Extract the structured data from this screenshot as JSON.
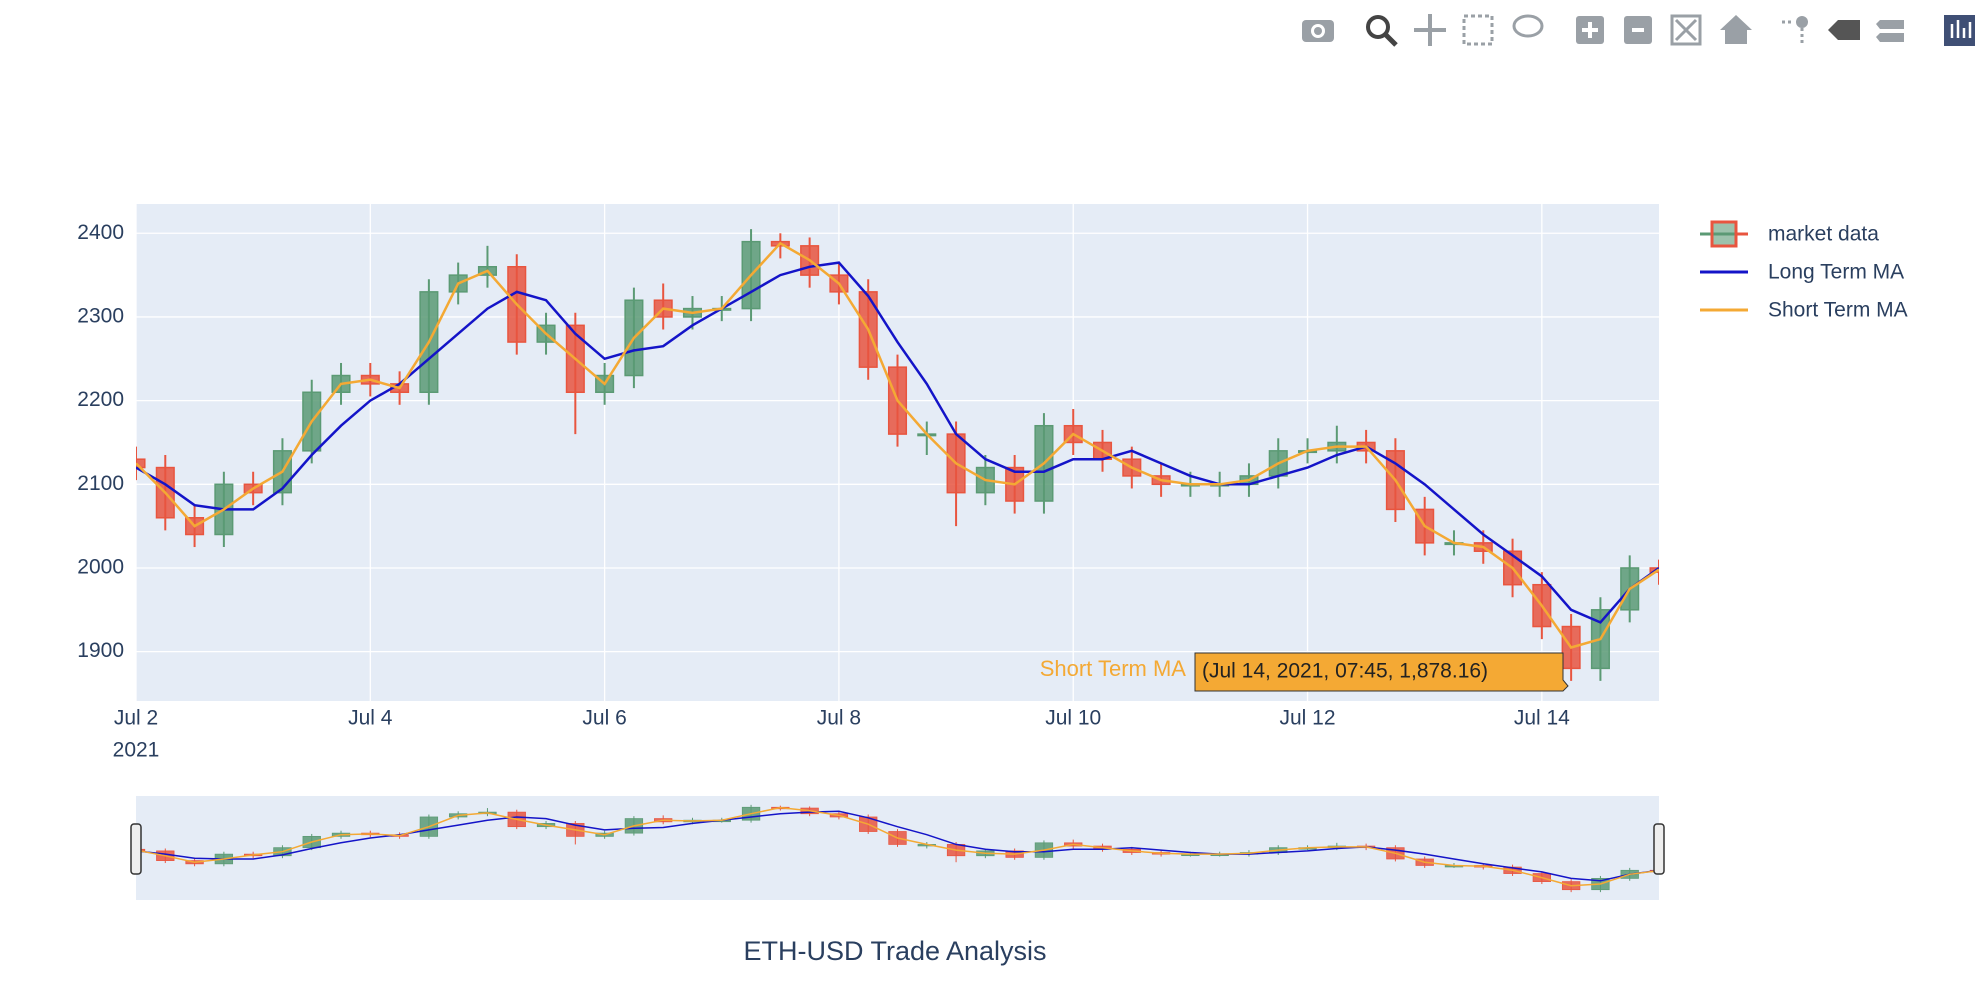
{
  "chart_data": {
    "type": "candlestick",
    "title": "ETH-USD Trade Analysis",
    "x": [
      "2021-07-02 00:00",
      "2021-07-02 06:00",
      "2021-07-02 12:00",
      "2021-07-02 18:00",
      "2021-07-03 00:00",
      "2021-07-03 06:00",
      "2021-07-03 12:00",
      "2021-07-03 18:00",
      "2021-07-04 00:00",
      "2021-07-04 06:00",
      "2021-07-04 12:00",
      "2021-07-04 18:00",
      "2021-07-05 00:00",
      "2021-07-05 06:00",
      "2021-07-05 12:00",
      "2021-07-05 18:00",
      "2021-07-06 00:00",
      "2021-07-06 06:00",
      "2021-07-06 12:00",
      "2021-07-06 18:00",
      "2021-07-07 00:00",
      "2021-07-07 06:00",
      "2021-07-07 12:00",
      "2021-07-07 18:00",
      "2021-07-08 00:00",
      "2021-07-08 06:00",
      "2021-07-08 12:00",
      "2021-07-08 18:00",
      "2021-07-09 00:00",
      "2021-07-09 06:00",
      "2021-07-09 12:00",
      "2021-07-09 18:00",
      "2021-07-10 00:00",
      "2021-07-10 06:00",
      "2021-07-10 12:00",
      "2021-07-10 18:00",
      "2021-07-11 00:00",
      "2021-07-11 06:00",
      "2021-07-11 12:00",
      "2021-07-11 18:00",
      "2021-07-12 00:00",
      "2021-07-12 06:00",
      "2021-07-12 12:00",
      "2021-07-12 18:00",
      "2021-07-13 00:00",
      "2021-07-13 06:00",
      "2021-07-13 12:00",
      "2021-07-13 18:00",
      "2021-07-14 00:00",
      "2021-07-14 06:00",
      "2021-07-14 12:00",
      "2021-07-14 18:00",
      "2021-07-15 00:00"
    ],
    "candles": {
      "name": "market data",
      "increasing_color": "#5b9a74",
      "decreasing_color": "#e8553f",
      "open": [
        2130,
        2120,
        2060,
        2040,
        2100,
        2090,
        2140,
        2210,
        2230,
        2220,
        2210,
        2330,
        2350,
        2360,
        2270,
        2290,
        2210,
        2230,
        2320,
        2300,
        2310,
        2310,
        2390,
        2385,
        2350,
        2330,
        2240,
        2160,
        2160,
        2090,
        2120,
        2080,
        2170,
        2150,
        2130,
        2110,
        2100,
        2100,
        2100,
        2110,
        2140,
        2140,
        2150,
        2140,
        2070,
        2030,
        2030,
        2020,
        1980,
        1930,
        1880,
        1950,
        2000
      ],
      "high": [
        2145,
        2135,
        2075,
        2115,
        2115,
        2155,
        2225,
        2245,
        2245,
        2235,
        2345,
        2365,
        2385,
        2375,
        2305,
        2305,
        2245,
        2335,
        2340,
        2325,
        2325,
        2405,
        2400,
        2395,
        2365,
        2345,
        2255,
        2175,
        2175,
        2135,
        2135,
        2185,
        2190,
        2165,
        2145,
        2125,
        2115,
        2115,
        2125,
        2155,
        2155,
        2170,
        2165,
        2155,
        2085,
        2045,
        2045,
        2035,
        1995,
        1945,
        1965,
        2015,
        2010
      ],
      "low": [
        2105,
        2045,
        2025,
        2025,
        2075,
        2075,
        2125,
        2195,
        2205,
        2195,
        2195,
        2315,
        2335,
        2255,
        2255,
        2160,
        2195,
        2215,
        2285,
        2285,
        2295,
        2295,
        2370,
        2335,
        2315,
        2225,
        2145,
        2135,
        2050,
        2075,
        2065,
        2065,
        2135,
        2115,
        2095,
        2085,
        2085,
        2085,
        2085,
        2095,
        2125,
        2125,
        2125,
        2055,
        2015,
        2015,
        2005,
        1965,
        1915,
        1865,
        1865,
        1935,
        1980
      ],
      "close": [
        2120,
        2060,
        2040,
        2100,
        2090,
        2140,
        2210,
        2230,
        2220,
        2210,
        2330,
        2350,
        2360,
        2270,
        2290,
        2210,
        2230,
        2320,
        2300,
        2310,
        2310,
        2390,
        2385,
        2350,
        2330,
        2240,
        2160,
        2160,
        2090,
        2120,
        2080,
        2170,
        2150,
        2130,
        2110,
        2100,
        2100,
        2100,
        2110,
        2140,
        2140,
        2150,
        2140,
        2070,
        2030,
        2030,
        2020,
        1980,
        1930,
        1880,
        1950,
        2000,
        1995
      ]
    },
    "series": [
      {
        "name": "Long Term MA",
        "color": "#1414c8",
        "values": [
          2120,
          2100,
          2075,
          2070,
          2070,
          2095,
          2135,
          2170,
          2200,
          2220,
          2250,
          2280,
          2310,
          2330,
          2320,
          2280,
          2250,
          2260,
          2265,
          2290,
          2310,
          2330,
          2350,
          2360,
          2365,
          2325,
          2270,
          2220,
          2160,
          2130,
          2115,
          2115,
          2130,
          2130,
          2140,
          2125,
          2110,
          2100,
          2100,
          2110,
          2120,
          2135,
          2145,
          2125,
          2100,
          2070,
          2040,
          2015,
          1990,
          1950,
          1935,
          1975,
          2000
        ]
      },
      {
        "name": "Short Term MA",
        "color": "#f4a934",
        "values": [
          2125,
          2090,
          2050,
          2070,
          2095,
          2115,
          2175,
          2220,
          2225,
          2215,
          2270,
          2340,
          2355,
          2315,
          2280,
          2250,
          2220,
          2275,
          2310,
          2305,
          2310,
          2350,
          2388,
          2368,
          2340,
          2285,
          2200,
          2160,
          2125,
          2105,
          2100,
          2125,
          2160,
          2140,
          2120,
          2105,
          2100,
          2100,
          2105,
          2125,
          2140,
          2145,
          2145,
          2105,
          2050,
          2030,
          2025,
          2000,
          1955,
          1905,
          1915,
          1975,
          1998
        ]
      }
    ],
    "xlim": [
      "2021-07-02 00:00",
      "2021-07-15 00:00"
    ],
    "xticks": [
      {
        "value": "2021-07-02 00:00",
        "label": "Jul 2"
      },
      {
        "value": "2021-07-04 00:00",
        "label": "Jul 4"
      },
      {
        "value": "2021-07-06 00:00",
        "label": "Jul 6"
      },
      {
        "value": "2021-07-08 00:00",
        "label": "Jul 8"
      },
      {
        "value": "2021-07-10 00:00",
        "label": "Jul 10"
      },
      {
        "value": "2021-07-12 00:00",
        "label": "Jul 12"
      },
      {
        "value": "2021-07-14 00:00",
        "label": "Jul 14"
      }
    ],
    "x_year_label": "2021",
    "ylim": [
      1841,
      2435
    ],
    "yticks": [
      1900,
      2000,
      2100,
      2200,
      2300,
      2400
    ],
    "grid": true,
    "legend_position": "right",
    "range_slider": true,
    "hover": {
      "label": "Short Term MA",
      "text": "(Jul 14, 2021, 07:45, 1,878.16)"
    }
  }
}
